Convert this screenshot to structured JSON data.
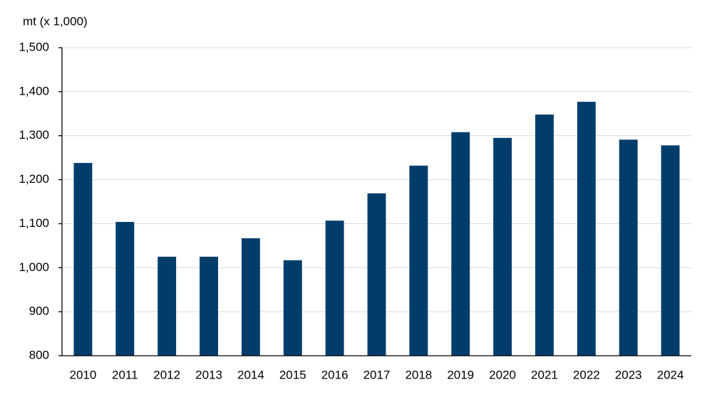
{
  "chart_data": {
    "type": "bar",
    "y_axis_label": "mt (x 1,000)",
    "categories": [
      "2010",
      "2011",
      "2012",
      "2013",
      "2014",
      "2015",
      "2016",
      "2017",
      "2018",
      "2019",
      "2020",
      "2021",
      "2022",
      "2023",
      "2024"
    ],
    "values": [
      1238,
      1104,
      1025,
      1025,
      1067,
      1017,
      1107,
      1169,
      1232,
      1308,
      1295,
      1348,
      1377,
      1291,
      1278
    ],
    "color": "#003d6b",
    "ylim": [
      800,
      1500
    ],
    "yticks": [
      800,
      900,
      {
        "value": 1000,
        "label": "1,000"
      },
      {
        "value": 1100,
        "label": "1,100"
      },
      {
        "value": 1200,
        "label": "1,200"
      },
      {
        "value": 1300,
        "label": "1,300"
      },
      {
        "value": 1400,
        "label": "1,400"
      },
      {
        "value": 1500,
        "label": "1,500"
      }
    ],
    "grid": true
  }
}
